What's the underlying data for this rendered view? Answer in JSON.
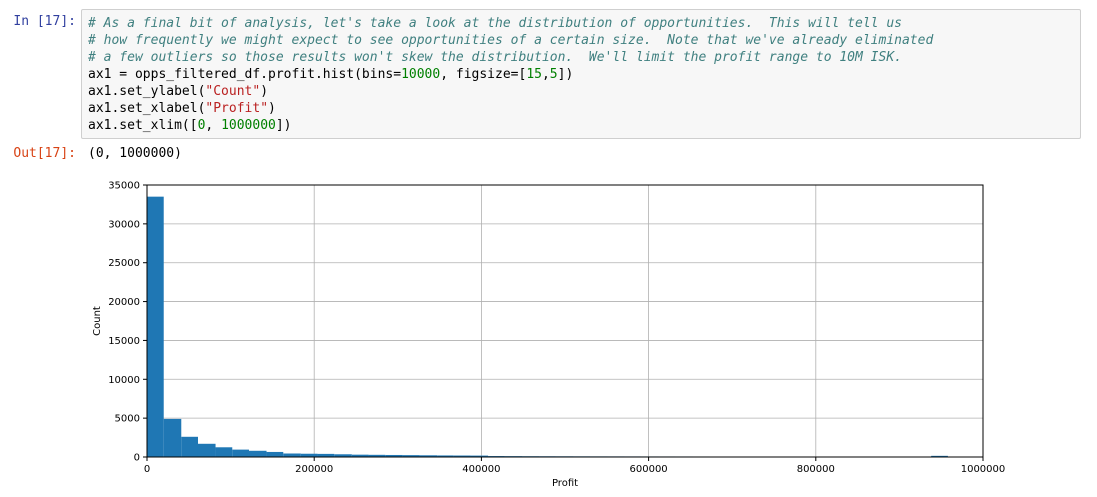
{
  "cell": {
    "in_prompt": "In [17]:",
    "out_prompt": "Out[17]:",
    "output_text": "(0, 1000000)",
    "code_lines": [
      [
        {
          "t": "cmt",
          "v": "# As a final bit of analysis, let's take a look at the distribution of opportunities.  This will tell us"
        }
      ],
      [
        {
          "t": "cmt",
          "v": "# how frequently we might expect to see opportunities of a certain size.  Note that we've already eliminated"
        }
      ],
      [
        {
          "t": "cmt",
          "v": "# a few outliers so those results won't skew the distribution.  We'll limit the profit range to 10M ISK."
        }
      ],
      [
        {
          "t": "",
          "v": "ax1 = opps_filtered_df.profit.hist(bins="
        },
        {
          "t": "num",
          "v": "10000"
        },
        {
          "t": "",
          "v": ", figsize=["
        },
        {
          "t": "num",
          "v": "15"
        },
        {
          "t": "",
          "v": ","
        },
        {
          "t": "num",
          "v": "5"
        },
        {
          "t": "",
          "v": "])"
        }
      ],
      [
        {
          "t": "",
          "v": "ax1.set_ylabel("
        },
        {
          "t": "str",
          "v": "\"Count\""
        },
        {
          "t": "",
          "v": ")"
        }
      ],
      [
        {
          "t": "",
          "v": "ax1.set_xlabel("
        },
        {
          "t": "str",
          "v": "\"Profit\""
        },
        {
          "t": "",
          "v": ")"
        }
      ],
      [
        {
          "t": "",
          "v": "ax1.set_xlim(["
        },
        {
          "t": "num",
          "v": "0"
        },
        {
          "t": "",
          "v": ", "
        },
        {
          "t": "num",
          "v": "1000000"
        },
        {
          "t": "",
          "v": "])"
        }
      ]
    ]
  },
  "chart_data": {
    "type": "bar",
    "xlabel": "Profit",
    "ylabel": "Count",
    "xlim": [
      0,
      1000000
    ],
    "ylim": [
      0,
      35000
    ],
    "grid": true,
    "bar_color": "#1f77b4",
    "xticks": [
      0,
      200000,
      400000,
      600000,
      800000,
      1000000
    ],
    "yticks": [
      0,
      5000,
      10000,
      15000,
      20000,
      25000,
      30000,
      35000
    ],
    "bins": [
      {
        "x0": 0,
        "x1": 20000,
        "count": 33500
      },
      {
        "x0": 20000,
        "x1": 41000,
        "count": 4900
      },
      {
        "x0": 41000,
        "x1": 61000,
        "count": 2600
      },
      {
        "x0": 61000,
        "x1": 82000,
        "count": 1700
      },
      {
        "x0": 82000,
        "x1": 102000,
        "count": 1250
      },
      {
        "x0": 102000,
        "x1": 122000,
        "count": 950
      },
      {
        "x0": 122000,
        "x1": 143000,
        "count": 800
      },
      {
        "x0": 143000,
        "x1": 163000,
        "count": 650
      },
      {
        "x0": 163000,
        "x1": 184000,
        "count": 450
      },
      {
        "x0": 184000,
        "x1": 204000,
        "count": 420
      },
      {
        "x0": 204000,
        "x1": 224000,
        "count": 400
      },
      {
        "x0": 224000,
        "x1": 245000,
        "count": 350
      },
      {
        "x0": 245000,
        "x1": 265000,
        "count": 300
      },
      {
        "x0": 265000,
        "x1": 285000,
        "count": 280
      },
      {
        "x0": 285000,
        "x1": 306000,
        "count": 260
      },
      {
        "x0": 306000,
        "x1": 326000,
        "count": 240
      },
      {
        "x0": 326000,
        "x1": 347000,
        "count": 220
      },
      {
        "x0": 347000,
        "x1": 367000,
        "count": 200
      },
      {
        "x0": 367000,
        "x1": 387000,
        "count": 190
      },
      {
        "x0": 387000,
        "x1": 408000,
        "count": 180
      },
      {
        "x0": 408000,
        "x1": 428000,
        "count": 120
      },
      {
        "x0": 428000,
        "x1": 449000,
        "count": 110
      },
      {
        "x0": 449000,
        "x1": 469000,
        "count": 100
      },
      {
        "x0": 469000,
        "x1": 489000,
        "count": 95
      },
      {
        "x0": 489000,
        "x1": 510000,
        "count": 90
      },
      {
        "x0": 510000,
        "x1": 530000,
        "count": 85
      },
      {
        "x0": 530000,
        "x1": 551000,
        "count": 80
      },
      {
        "x0": 551000,
        "x1": 571000,
        "count": 78
      },
      {
        "x0": 571000,
        "x1": 591000,
        "count": 75
      },
      {
        "x0": 591000,
        "x1": 612000,
        "count": 72
      },
      {
        "x0": 612000,
        "x1": 632000,
        "count": 70
      },
      {
        "x0": 632000,
        "x1": 653000,
        "count": 68
      },
      {
        "x0": 653000,
        "x1": 673000,
        "count": 66
      },
      {
        "x0": 673000,
        "x1": 693000,
        "count": 64
      },
      {
        "x0": 693000,
        "x1": 714000,
        "count": 62
      },
      {
        "x0": 714000,
        "x1": 734000,
        "count": 60
      },
      {
        "x0": 734000,
        "x1": 754000,
        "count": 58
      },
      {
        "x0": 754000,
        "x1": 775000,
        "count": 56
      },
      {
        "x0": 775000,
        "x1": 795000,
        "count": 54
      },
      {
        "x0": 795000,
        "x1": 816000,
        "count": 52
      },
      {
        "x0": 816000,
        "x1": 836000,
        "count": 50
      },
      {
        "x0": 836000,
        "x1": 856000,
        "count": 48
      },
      {
        "x0": 856000,
        "x1": 877000,
        "count": 46
      },
      {
        "x0": 877000,
        "x1": 897000,
        "count": 44
      },
      {
        "x0": 897000,
        "x1": 918000,
        "count": 42
      },
      {
        "x0": 918000,
        "x1": 938000,
        "count": 40
      },
      {
        "x0": 938000,
        "x1": 958000,
        "count": 150
      },
      {
        "x0": 958000,
        "x1": 979000,
        "count": 30
      }
    ]
  }
}
